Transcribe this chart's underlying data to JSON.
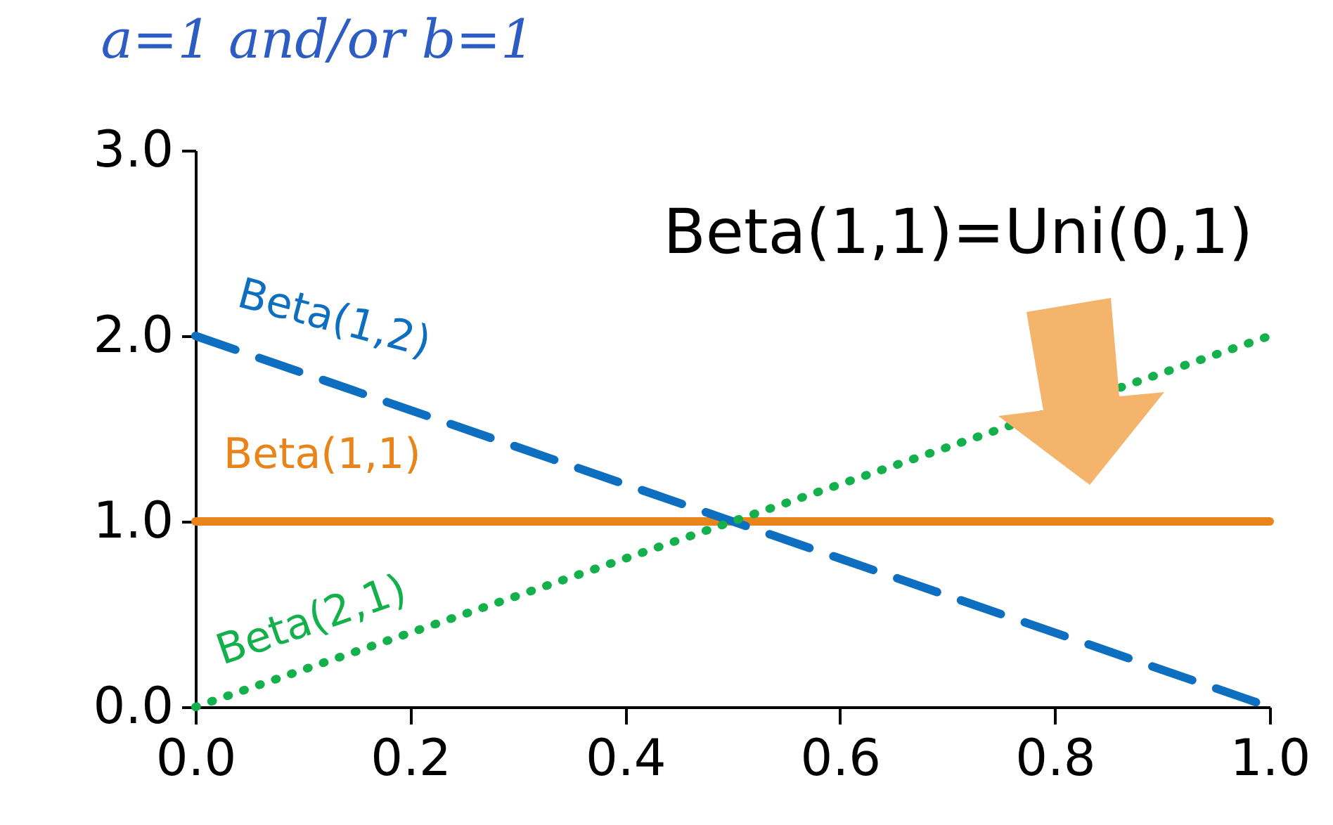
{
  "chart_data": {
    "type": "line",
    "title": "a=1 and/or b=1",
    "annotations": [
      "Beta(1,1)=Uni(0,1)"
    ],
    "x": [
      0,
      1
    ],
    "series": [
      {
        "name": "Beta(1,1)",
        "color": "#e8841a",
        "values": [
          1,
          1
        ],
        "line_style": "solid"
      },
      {
        "name": "Beta(1,2)",
        "color": "#0e6fc0",
        "values": [
          2,
          0
        ],
        "line_style": "dashed"
      },
      {
        "name": "Beta(2,1)",
        "color": "#13b04c",
        "values": [
          0,
          2
        ],
        "line_style": "dotted"
      }
    ],
    "xlim": [
      0,
      1
    ],
    "ylim": [
      0,
      3
    ],
    "xticks": [
      {
        "value": 0,
        "label": "0.0"
      },
      {
        "value": 0.2,
        "label": "0.2"
      },
      {
        "value": 0.4,
        "label": "0.4"
      },
      {
        "value": 0.6,
        "label": "0.6"
      },
      {
        "value": 0.8,
        "label": "0.8"
      },
      {
        "value": 1,
        "label": "1.0"
      }
    ],
    "yticks": [
      {
        "value": 0,
        "label": "0.0"
      },
      {
        "value": 1,
        "label": "1.0"
      },
      {
        "value": 2,
        "label": "2.0"
      },
      {
        "value": 3,
        "label": "3.0"
      }
    ],
    "grid": false,
    "legend": false
  }
}
